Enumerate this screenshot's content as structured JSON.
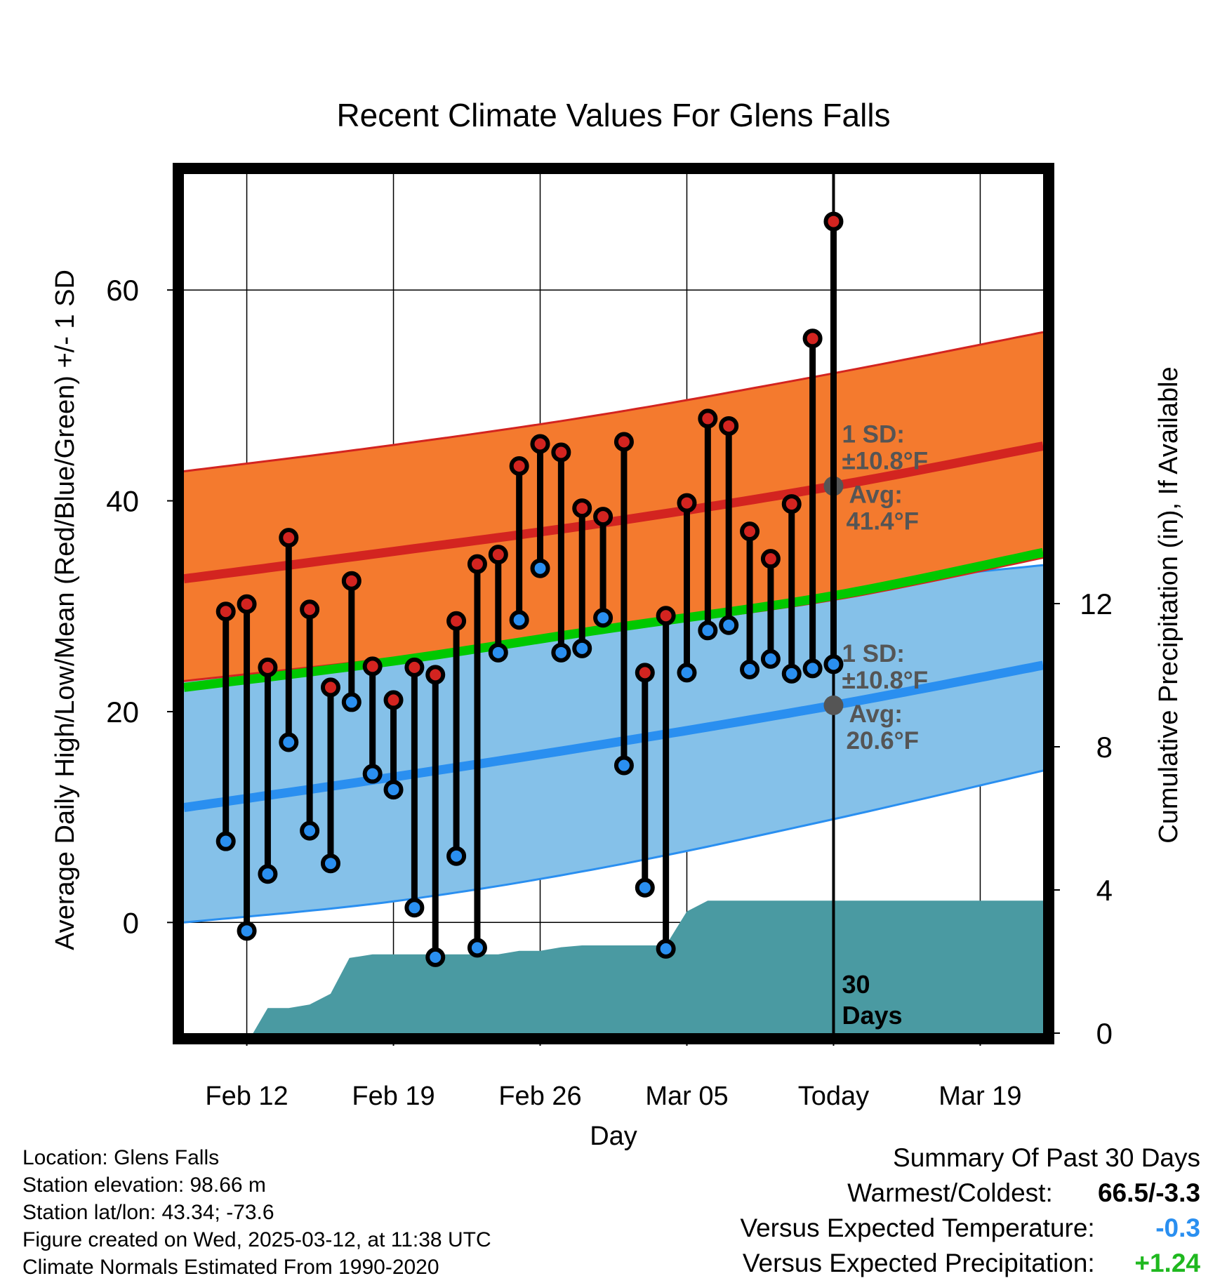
{
  "chart_data": {
    "type": "line",
    "title": "Recent Climate Values For Glens Falls",
    "xlabel": "Day",
    "ylabel": "Average Daily High/Low/Mean (Red/Blue/Green) +/- 1 SD",
    "y2label": "Cumulative Precipitation (in), If Available",
    "xlim": [
      "2025-02-09",
      "2025-03-22"
    ],
    "ylim": [
      -10.5,
      71
    ],
    "y2lim": [
      0,
      24
    ],
    "x_ticks": [
      {
        "date": "2025-02-12",
        "label": "Feb 12"
      },
      {
        "date": "2025-02-19",
        "label": "Feb 19"
      },
      {
        "date": "2025-02-26",
        "label": "Feb 26"
      },
      {
        "date": "2025-03-05",
        "label": "Mar 05"
      },
      {
        "date": "2025-03-12",
        "label": "Today"
      },
      {
        "date": "2025-03-19",
        "label": "Mar 19"
      }
    ],
    "y_ticks": [
      0,
      20,
      40,
      60
    ],
    "y2_ticks": [
      0,
      4,
      8,
      12
    ],
    "grid": true,
    "today": "2025-03-12",
    "today_marker_label": "30 Days",
    "normals": {
      "x": [
        "2025-02-09",
        "2025-02-19",
        "2025-03-01",
        "2025-03-12",
        "2025-03-22"
      ],
      "high_avg": [
        32.6,
        35.2,
        37.9,
        41.4,
        45.2
      ],
      "high_upper": [
        42.8,
        45.3,
        48.2,
        52.1,
        56.0
      ],
      "high_lower": [
        22.9,
        25.1,
        27.6,
        30.6,
        34.6
      ],
      "low_avg": [
        10.9,
        13.8,
        16.9,
        20.6,
        24.4
      ],
      "low_upper": [
        23.6,
        26.0,
        28.8,
        31.8,
        33.9
      ],
      "low_lower": [
        0.0,
        2.0,
        5.2,
        9.8,
        14.4
      ],
      "mean_avg": [
        22.3,
        24.8,
        27.8,
        31.0,
        35.1
      ]
    },
    "annotations": [
      {
        "label": "1 SD:",
        "date": "2025-03-12",
        "value": 41.4,
        "sd": "±10.8°F",
        "avg_label": "Avg:",
        "avg": "41.4°F"
      },
      {
        "label": "1 SD:",
        "date": "2025-03-12",
        "value": 20.6,
        "sd": "±10.8°F",
        "avg_label": "Avg:",
        "avg": "20.6°F"
      }
    ],
    "observed": {
      "dates": [
        "2025-02-11",
        "2025-02-12",
        "2025-02-13",
        "2025-02-14",
        "2025-02-15",
        "2025-02-16",
        "2025-02-17",
        "2025-02-18",
        "2025-02-19",
        "2025-02-20",
        "2025-02-21",
        "2025-02-22",
        "2025-02-23",
        "2025-02-24",
        "2025-02-25",
        "2025-02-26",
        "2025-02-27",
        "2025-02-28",
        "2025-03-01",
        "2025-03-02",
        "2025-03-03",
        "2025-03-04",
        "2025-03-05",
        "2025-03-06",
        "2025-03-07",
        "2025-03-08",
        "2025-03-09",
        "2025-03-10",
        "2025-03-11",
        "2025-03-12"
      ],
      "high": [
        29.5,
        30.2,
        24.2,
        36.5,
        29.7,
        22.3,
        32.4,
        24.3,
        21.1,
        24.2,
        23.5,
        28.6,
        34.0,
        34.9,
        43.3,
        45.4,
        44.6,
        39.3,
        38.5,
        45.6,
        23.7,
        29.1,
        39.8,
        47.8,
        47.1,
        37.1,
        34.5,
        39.7,
        55.4,
        66.5
      ],
      "low": [
        7.7,
        -0.8,
        4.6,
        17.1,
        8.7,
        5.6,
        20.9,
        14.1,
        12.6,
        1.4,
        -3.3,
        6.3,
        -2.4,
        25.6,
        28.7,
        33.6,
        25.6,
        26.0,
        28.9,
        14.9,
        3.3,
        -2.5,
        23.7,
        27.7,
        28.2,
        24.0,
        25.0,
        23.6,
        24.1,
        24.5
      ]
    },
    "precipitation": {
      "x": [
        "2025-02-09",
        "2025-02-12",
        "2025-02-12.3",
        "2025-02-13",
        "2025-02-14",
        "2025-02-15",
        "2025-02-16",
        "2025-02-16.9",
        "2025-02-18",
        "2025-02-24",
        "2025-02-25",
        "2025-02-26",
        "2025-02-27",
        "2025-02-28",
        "2025-03-04",
        "2025-03-05",
        "2025-03-06",
        "2025-03-22"
      ],
      "values": [
        0,
        0,
        0,
        0.7,
        0.7,
        0.8,
        1.1,
        2.1,
        2.2,
        2.2,
        2.3,
        2.3,
        2.4,
        2.45,
        2.45,
        3.4,
        3.7,
        3.7
      ]
    }
  },
  "colors": {
    "high": "#d32420",
    "high_band": "#f47a2e",
    "low": "#2a8ff0",
    "low_band": "#85c1e9",
    "mean": "#00c800",
    "precip": "#4a9aa2",
    "sd_text": "#555555",
    "positive": "#1fb81f",
    "negative": "#2a8ff0"
  },
  "info": {
    "location": "Location: Glens Falls",
    "elevation": "Station elevation: 98.66 m",
    "latlon": "Station lat/lon: 43.34; -73.6",
    "created": "Figure created on Wed, 2025-03-12, at 11:38 UTC",
    "normals": "Climate Normals Estimated From 1990-2020"
  },
  "summary": {
    "title": "Summary Of Past 30 Days",
    "warmest_label": "Warmest/Coldest:",
    "warmest_value": "66.5/-3.3",
    "temp_label": "Versus Expected Temperature:",
    "temp_value": "-0.3",
    "precip_label": "Versus Expected Precipitation:",
    "precip_value": "+1.24"
  }
}
